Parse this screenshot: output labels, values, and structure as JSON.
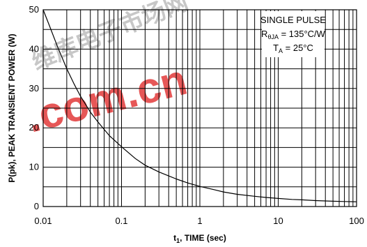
{
  "chart_data": {
    "type": "line",
    "xscale": "log",
    "xlim": [
      0.01,
      100
    ],
    "ylim": [
      0,
      50
    ],
    "xticks": [
      0.01,
      0.1,
      1,
      10,
      100
    ],
    "xtick_labels": [
      "0.01",
      "0.1",
      "1",
      "10",
      "100"
    ],
    "yticks": [
      0,
      10,
      20,
      30,
      40,
      50
    ],
    "ytick_labels": [
      "0",
      "10",
      "20",
      "30",
      "40",
      "50"
    ],
    "xlabel_main": "t",
    "xlabel_sub": "1",
    "xlabel_rest": ", TIME (sec)",
    "ylabel": "P(pk), PEAK TRANSIENT POWER (W)",
    "grid": true,
    "annotation": {
      "line1": "SINGLE PULSE",
      "line2_main": "R",
      "line2_sub": "θJA",
      "line2_rest": " = 135°C/W",
      "line3_main": "T",
      "line3_sub": "A",
      "line3_rest": " = 25°C",
      "placement": "top-right"
    },
    "series": [
      {
        "x": [
          0.01,
          0.012,
          0.015,
          0.02,
          0.025,
          0.03,
          0.04,
          0.05,
          0.07,
          0.1,
          0.15,
          0.2,
          0.3,
          0.5,
          0.7,
          1,
          1.5,
          2,
          3,
          5,
          7,
          10,
          15,
          20,
          30,
          50,
          70,
          100
        ],
        "y": [
          50,
          46,
          41,
          35,
          31,
          28,
          24,
          21.5,
          18,
          15.2,
          12.2,
          10.5,
          8.8,
          7.0,
          6.0,
          5.1,
          4.3,
          3.7,
          3.1,
          2.6,
          2.3,
          2.05,
          1.8,
          1.7,
          1.5,
          1.35,
          1.28,
          1.2
        ]
      }
    ]
  },
  "watermark": {
    "text": ".com.cn",
    "cn_text": "维库电子市场网"
  }
}
